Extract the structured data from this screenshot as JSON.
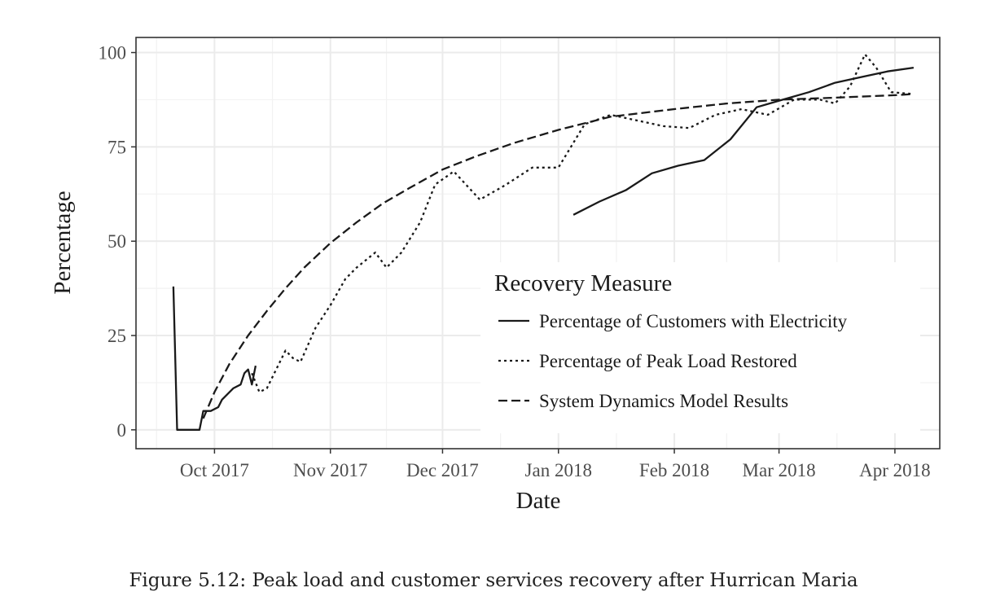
{
  "chart_data": {
    "type": "line",
    "xlabel": "Date",
    "ylabel": "Percentage",
    "x_ticks": [
      "Oct 2017",
      "Nov 2017",
      "Dec 2017",
      "Jan 2018",
      "Feb 2018",
      "Mar 2018",
      "Apr 2018"
    ],
    "y_ticks": [
      0,
      25,
      50,
      75,
      100
    ],
    "ylim": [
      -5,
      104
    ],
    "xlim": [
      "2017-09-10",
      "2018-04-13"
    ],
    "grid": true,
    "legend": {
      "title": "Recovery Measure",
      "position": "bottom-right"
    },
    "series": [
      {
        "name": "Percentage of Customers with Electricity",
        "line_style": "solid",
        "points": [
          [
            "2017-09-20",
            38
          ],
          [
            "2017-09-21",
            0
          ],
          [
            "2017-09-27",
            0
          ],
          [
            "2017-09-28",
            5
          ],
          [
            "2017-09-30",
            5
          ],
          [
            "2017-10-02",
            6
          ],
          [
            "2017-10-03",
            8
          ],
          [
            "2017-10-06",
            11
          ],
          [
            "2017-10-08",
            12
          ],
          [
            "2017-10-09",
            15
          ],
          [
            "2017-10-10",
            16
          ],
          [
            "2017-10-11",
            12
          ],
          [
            "2017-10-12",
            17
          ],
          null,
          [
            "2018-01-05",
            57
          ],
          [
            "2018-01-12",
            60.5
          ],
          [
            "2018-01-19",
            63.5
          ],
          [
            "2018-01-26",
            68
          ],
          [
            "2018-02-02",
            70
          ],
          [
            "2018-02-09",
            71.5
          ],
          [
            "2018-02-16",
            77
          ],
          [
            "2018-02-23",
            85.5
          ],
          [
            "2018-03-02",
            87.5
          ],
          [
            "2018-03-09",
            89.5
          ],
          [
            "2018-03-16",
            92
          ],
          [
            "2018-03-23",
            93.5
          ],
          [
            "2018-03-30",
            95
          ],
          [
            "2018-04-06",
            96
          ]
        ]
      },
      {
        "name": "Percentage of Peak Load Restored",
        "line_style": "dotted",
        "points": [
          [
            "2017-10-11",
            15
          ],
          [
            "2017-10-13",
            10
          ],
          [
            "2017-10-15",
            11
          ],
          [
            "2017-10-20",
            21
          ],
          [
            "2017-10-22",
            19
          ],
          [
            "2017-10-24",
            18
          ],
          [
            "2017-10-28",
            27
          ],
          [
            "2017-11-01",
            33
          ],
          [
            "2017-11-05",
            40
          ],
          [
            "2017-11-08",
            43
          ],
          [
            "2017-11-13",
            47
          ],
          [
            "2017-11-16",
            43
          ],
          [
            "2017-11-20",
            47
          ],
          [
            "2017-11-25",
            55
          ],
          [
            "2017-11-29",
            65
          ],
          [
            "2017-12-04",
            68.5
          ],
          [
            "2017-12-11",
            61
          ],
          [
            "2017-12-18",
            65
          ],
          [
            "2017-12-25",
            69.5
          ],
          [
            "2018-01-01",
            69.5
          ],
          [
            "2018-01-08",
            81
          ],
          [
            "2018-01-15",
            83.5
          ],
          [
            "2018-01-22",
            82
          ],
          [
            "2018-01-29",
            80.5
          ],
          [
            "2018-02-05",
            80
          ],
          [
            "2018-02-12",
            83.5
          ],
          [
            "2018-02-19",
            85
          ],
          [
            "2018-02-26",
            83.5
          ],
          [
            "2018-03-05",
            87.5
          ],
          [
            "2018-03-12",
            87.5
          ],
          [
            "2018-03-16",
            86.5
          ],
          [
            "2018-03-20",
            91
          ],
          [
            "2018-03-24",
            99.5
          ],
          [
            "2018-03-27",
            96
          ],
          [
            "2018-03-31",
            89.5
          ],
          [
            "2018-04-06",
            89
          ]
        ]
      },
      {
        "name": "System Dynamics Model Results",
        "line_style": "dashed",
        "points": [
          [
            "2017-09-28",
            3
          ],
          [
            "2017-10-01",
            10
          ],
          [
            "2017-10-05",
            17.5
          ],
          [
            "2017-10-10",
            25
          ],
          [
            "2017-10-15",
            31.5
          ],
          [
            "2017-10-20",
            37.5
          ],
          [
            "2017-10-25",
            43
          ],
          [
            "2017-11-01",
            49.5
          ],
          [
            "2017-11-08",
            55
          ],
          [
            "2017-11-15",
            60
          ],
          [
            "2017-11-22",
            64
          ],
          [
            "2017-12-01",
            69
          ],
          [
            "2017-12-10",
            72.5
          ],
          [
            "2017-12-20",
            76
          ],
          [
            "2018-01-01",
            79.5
          ],
          [
            "2018-01-15",
            83
          ],
          [
            "2018-02-01",
            85
          ],
          [
            "2018-02-15",
            86.5
          ],
          [
            "2018-03-01",
            87.5
          ],
          [
            "2018-03-15",
            88
          ],
          [
            "2018-04-01",
            88.7
          ],
          [
            "2018-04-06",
            89
          ]
        ]
      }
    ]
  },
  "caption": "Figure 5.12: Peak load and customer services recovery after Hurrican Maria"
}
